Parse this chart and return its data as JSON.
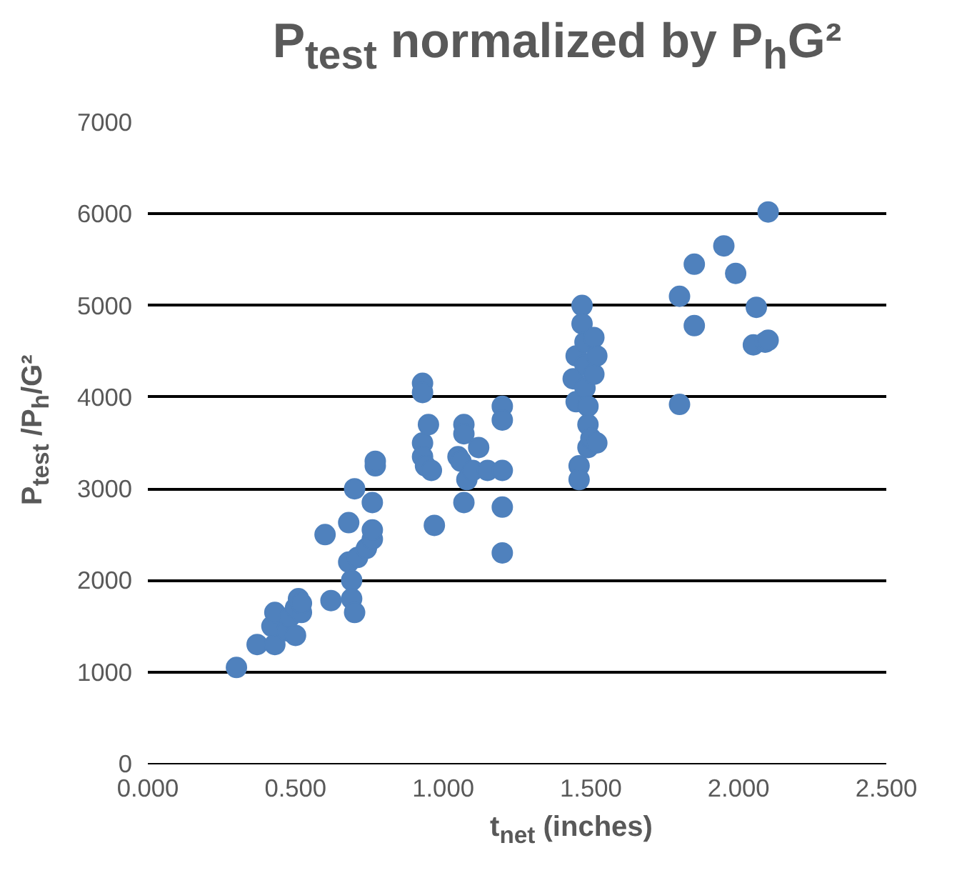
{
  "chart_data": {
    "type": "scatter",
    "title": "P$_{test}$ normalized by P$_{h}$G²",
    "xlabel": "t$_{net}$ (inches)",
    "ylabel": "P$_{test}$ /P$_{h}$/G²",
    "marker": "circle",
    "grid": "y",
    "xlim": [
      0,
      2.5
    ],
    "ylim": [
      0,
      7000
    ],
    "xticks": [
      {
        "value": 0,
        "label": "0.000"
      },
      {
        "value": 0.5,
        "label": "0.500"
      },
      {
        "value": 1,
        "label": "1.000"
      },
      {
        "value": 1.5,
        "label": "1.500"
      },
      {
        "value": 2,
        "label": "2.000"
      },
      {
        "value": 2.5,
        "label": "2.500"
      }
    ],
    "yticks": [
      0,
      1000,
      2000,
      3000,
      4000,
      5000,
      6000,
      7000
    ],
    "series": [
      {
        "color": "#4f81bd",
        "x": [
          0.3,
          0.37,
          0.43,
          0.42,
          0.43,
          0.47,
          0.48,
          0.5,
          0.5,
          0.51,
          0.52,
          0.52,
          0.6,
          0.62,
          0.68,
          0.68,
          0.69,
          0.69,
          0.7,
          0.7,
          0.71,
          0.74,
          0.76,
          0.76,
          0.76,
          0.77,
          0.77,
          0.93,
          0.93,
          0.93,
          0.93,
          0.94,
          0.95,
          0.97,
          0.96,
          1.05,
          1.07,
          1.07,
          1.06,
          1.08,
          1.07,
          1.1,
          1.12,
          1.15,
          1.2,
          1.2,
          1.2,
          1.2,
          1.2,
          1.44,
          1.45,
          1.45,
          1.46,
          1.46,
          1.47,
          1.47,
          1.48,
          1.48,
          1.48,
          1.49,
          1.49,
          1.49,
          1.5,
          1.51,
          1.51,
          1.52,
          1.52,
          1.8,
          1.8,
          1.85,
          1.85,
          1.95,
          1.99,
          2.05,
          2.06,
          2.09,
          2.1,
          2.1
        ],
        "values": [
          1050,
          1300,
          1300,
          1500,
          1650,
          1450,
          1600,
          1700,
          1400,
          1800,
          1650,
          1750,
          2500,
          1780,
          2630,
          2200,
          2000,
          1800,
          1650,
          3000,
          2250,
          2350,
          2450,
          2550,
          2850,
          3250,
          3300,
          4150,
          4050,
          3500,
          3350,
          3250,
          3700,
          2600,
          3200,
          3350,
          3700,
          3600,
          3300,
          3100,
          2850,
          3200,
          3450,
          3200,
          3900,
          3750,
          3200,
          2800,
          2300,
          4200,
          3950,
          4450,
          3250,
          3100,
          5000,
          4800,
          4600,
          4350,
          4100,
          3900,
          3700,
          3450,
          3550,
          4250,
          4650,
          4450,
          3500,
          5100,
          3920,
          5450,
          4780,
          5650,
          5350,
          4570,
          4980,
          4600,
          4620,
          6020
        ]
      }
    ]
  }
}
